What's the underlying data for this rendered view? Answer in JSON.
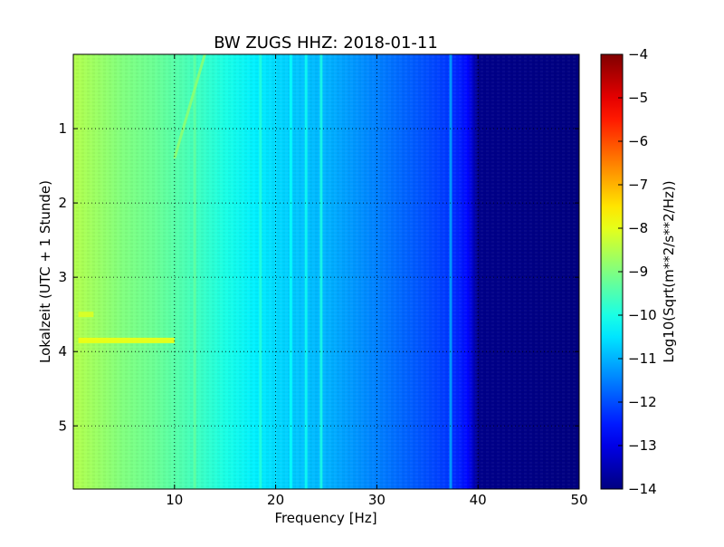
{
  "chart_data": {
    "type": "heatmap",
    "title": "BW ZUGS HHZ: 2018-01-11",
    "xlabel": "Frequency [Hz]",
    "ylabel": "Lokalzeit (UTC + 1 Stunde)",
    "xlim": [
      0,
      50
    ],
    "ylim": [
      5.85,
      0
    ],
    "x_ticks": [
      10,
      20,
      30,
      40,
      50
    ],
    "x_tick_labels": [
      "10",
      "20",
      "30",
      "40",
      "50"
    ],
    "y_ticks": [
      1,
      2,
      3,
      4,
      5
    ],
    "y_tick_labels": [
      "1",
      "2",
      "3",
      "4",
      "5"
    ],
    "grid": true,
    "colormap": "jet",
    "colorbar": {
      "label": "Log10(Sqrt(m**2/s**2/Hz))",
      "range": [
        -14,
        -4
      ],
      "ticks": [
        -4,
        -5,
        -6,
        -7,
        -8,
        -9,
        -10,
        -11,
        -12,
        -13,
        -14
      ],
      "tick_labels": [
        "−4",
        "−5",
        "−6",
        "−7",
        "−8",
        "−9",
        "−10",
        "−11",
        "−12",
        "−13",
        "−14"
      ]
    },
    "baseline_profile": {
      "frequency_hz": [
        0,
        2,
        5,
        8,
        10,
        12,
        15,
        18,
        20,
        22,
        25,
        28,
        30,
        33,
        35,
        37,
        38,
        39,
        40,
        50
      ],
      "log10_amplitude": [
        -8.5,
        -8.7,
        -9.0,
        -9.2,
        -9.4,
        -9.6,
        -10.0,
        -10.4,
        -10.6,
        -10.8,
        -11.0,
        -11.3,
        -11.5,
        -11.8,
        -12.0,
        -12.2,
        -12.4,
        -12.7,
        -13.9,
        -14.0
      ]
    },
    "features": [
      {
        "kind": "vertical_line",
        "frequency_hz": 12.0,
        "log10_amplitude": -9.3
      },
      {
        "kind": "vertical_line",
        "frequency_hz": 18.5,
        "log10_amplitude": -9.9
      },
      {
        "kind": "vertical_line",
        "frequency_hz": 21.5,
        "log10_amplitude": -10.2
      },
      {
        "kind": "vertical_line",
        "frequency_hz": 23.0,
        "log10_amplitude": -10.1
      },
      {
        "kind": "vertical_line",
        "frequency_hz": 24.5,
        "log10_amplitude": -10.0
      },
      {
        "kind": "vertical_line",
        "frequency_hz": 37.3,
        "log10_amplitude": -11.1
      },
      {
        "kind": "sloped_line",
        "from": [
          13.0,
          0.0
        ],
        "to": [
          10.0,
          1.4
        ],
        "log10_amplitude": -8.8
      },
      {
        "kind": "horizontal_burst",
        "time_h": 3.85,
        "from_hz": 0.5,
        "to_hz": 10.0,
        "log10_amplitude": -7.9
      },
      {
        "kind": "horizontal_burst",
        "time_h": 3.5,
        "from_hz": 0.5,
        "to_hz": 2.0,
        "log10_amplitude": -8.1
      }
    ]
  }
}
